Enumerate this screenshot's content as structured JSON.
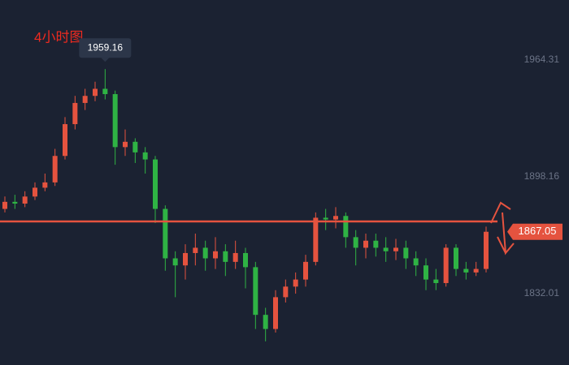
{
  "chart_data": {
    "type": "candlestick",
    "title": "4小时图",
    "open": [
      1880,
      1884,
      1883,
      1887,
      1892,
      1895,
      1910,
      1928,
      1940,
      1944,
      1948,
      1945,
      1915,
      1918,
      1912,
      1908,
      1880,
      1852,
      1848,
      1855,
      1858,
      1852,
      1856,
      1850,
      1855,
      1847,
      1820,
      1812,
      1830,
      1836,
      1840,
      1850,
      1875,
      1874,
      1876,
      1864,
      1858,
      1862,
      1858,
      1856,
      1858,
      1852,
      1848,
      1840,
      1838,
      1858,
      1846,
      1844,
      1846
    ],
    "high": [
      1887,
      1888,
      1890,
      1895,
      1900,
      1914,
      1932,
      1944,
      1948,
      1952,
      1959.16,
      1947,
      1925,
      1920,
      1915,
      1910,
      1882,
      1856,
      1860,
      1866,
      1862,
      1864,
      1860,
      1862,
      1858,
      1850,
      1824,
      1834,
      1840,
      1844,
      1854,
      1878,
      1880,
      1881,
      1878,
      1868,
      1866,
      1866,
      1864,
      1863,
      1862,
      1856,
      1852,
      1846,
      1860,
      1860,
      1850,
      1850,
      1870
    ],
    "low": [
      1878,
      1880,
      1881,
      1885,
      1890,
      1893,
      1908,
      1925,
      1936,
      1941,
      1942,
      1905,
      1910,
      1906,
      1900,
      1872,
      1845,
      1830,
      1840,
      1848,
      1845,
      1846,
      1842,
      1846,
      1835,
      1812,
      1805,
      1810,
      1827,
      1832,
      1836,
      1848,
      1868,
      1869,
      1858,
      1848,
      1852,
      1853,
      1850,
      1851,
      1846,
      1842,
      1834,
      1834,
      1836,
      1842,
      1840,
      1842,
      1844
    ],
    "close": [
      1884,
      1883,
      1887,
      1892,
      1895,
      1910,
      1928,
      1940,
      1944,
      1948,
      1945,
      1915,
      1918,
      1912,
      1908,
      1880,
      1852,
      1848,
      1855,
      1858,
      1852,
      1856,
      1850,
      1855,
      1847,
      1820,
      1812,
      1830,
      1836,
      1840,
      1850,
      1875,
      1874,
      1876,
      1864,
      1858,
      1862,
      1858,
      1856,
      1858,
      1852,
      1848,
      1840,
      1838,
      1858,
      1846,
      1844,
      1846,
      1867.05
    ],
    "up_color": "#e5533f",
    "down_color": "#2fb344",
    "ylim": [
      1791.6,
      1998.3
    ],
    "yticks": [
      1832.01,
      1898.16,
      1964.31
    ]
  }
}
